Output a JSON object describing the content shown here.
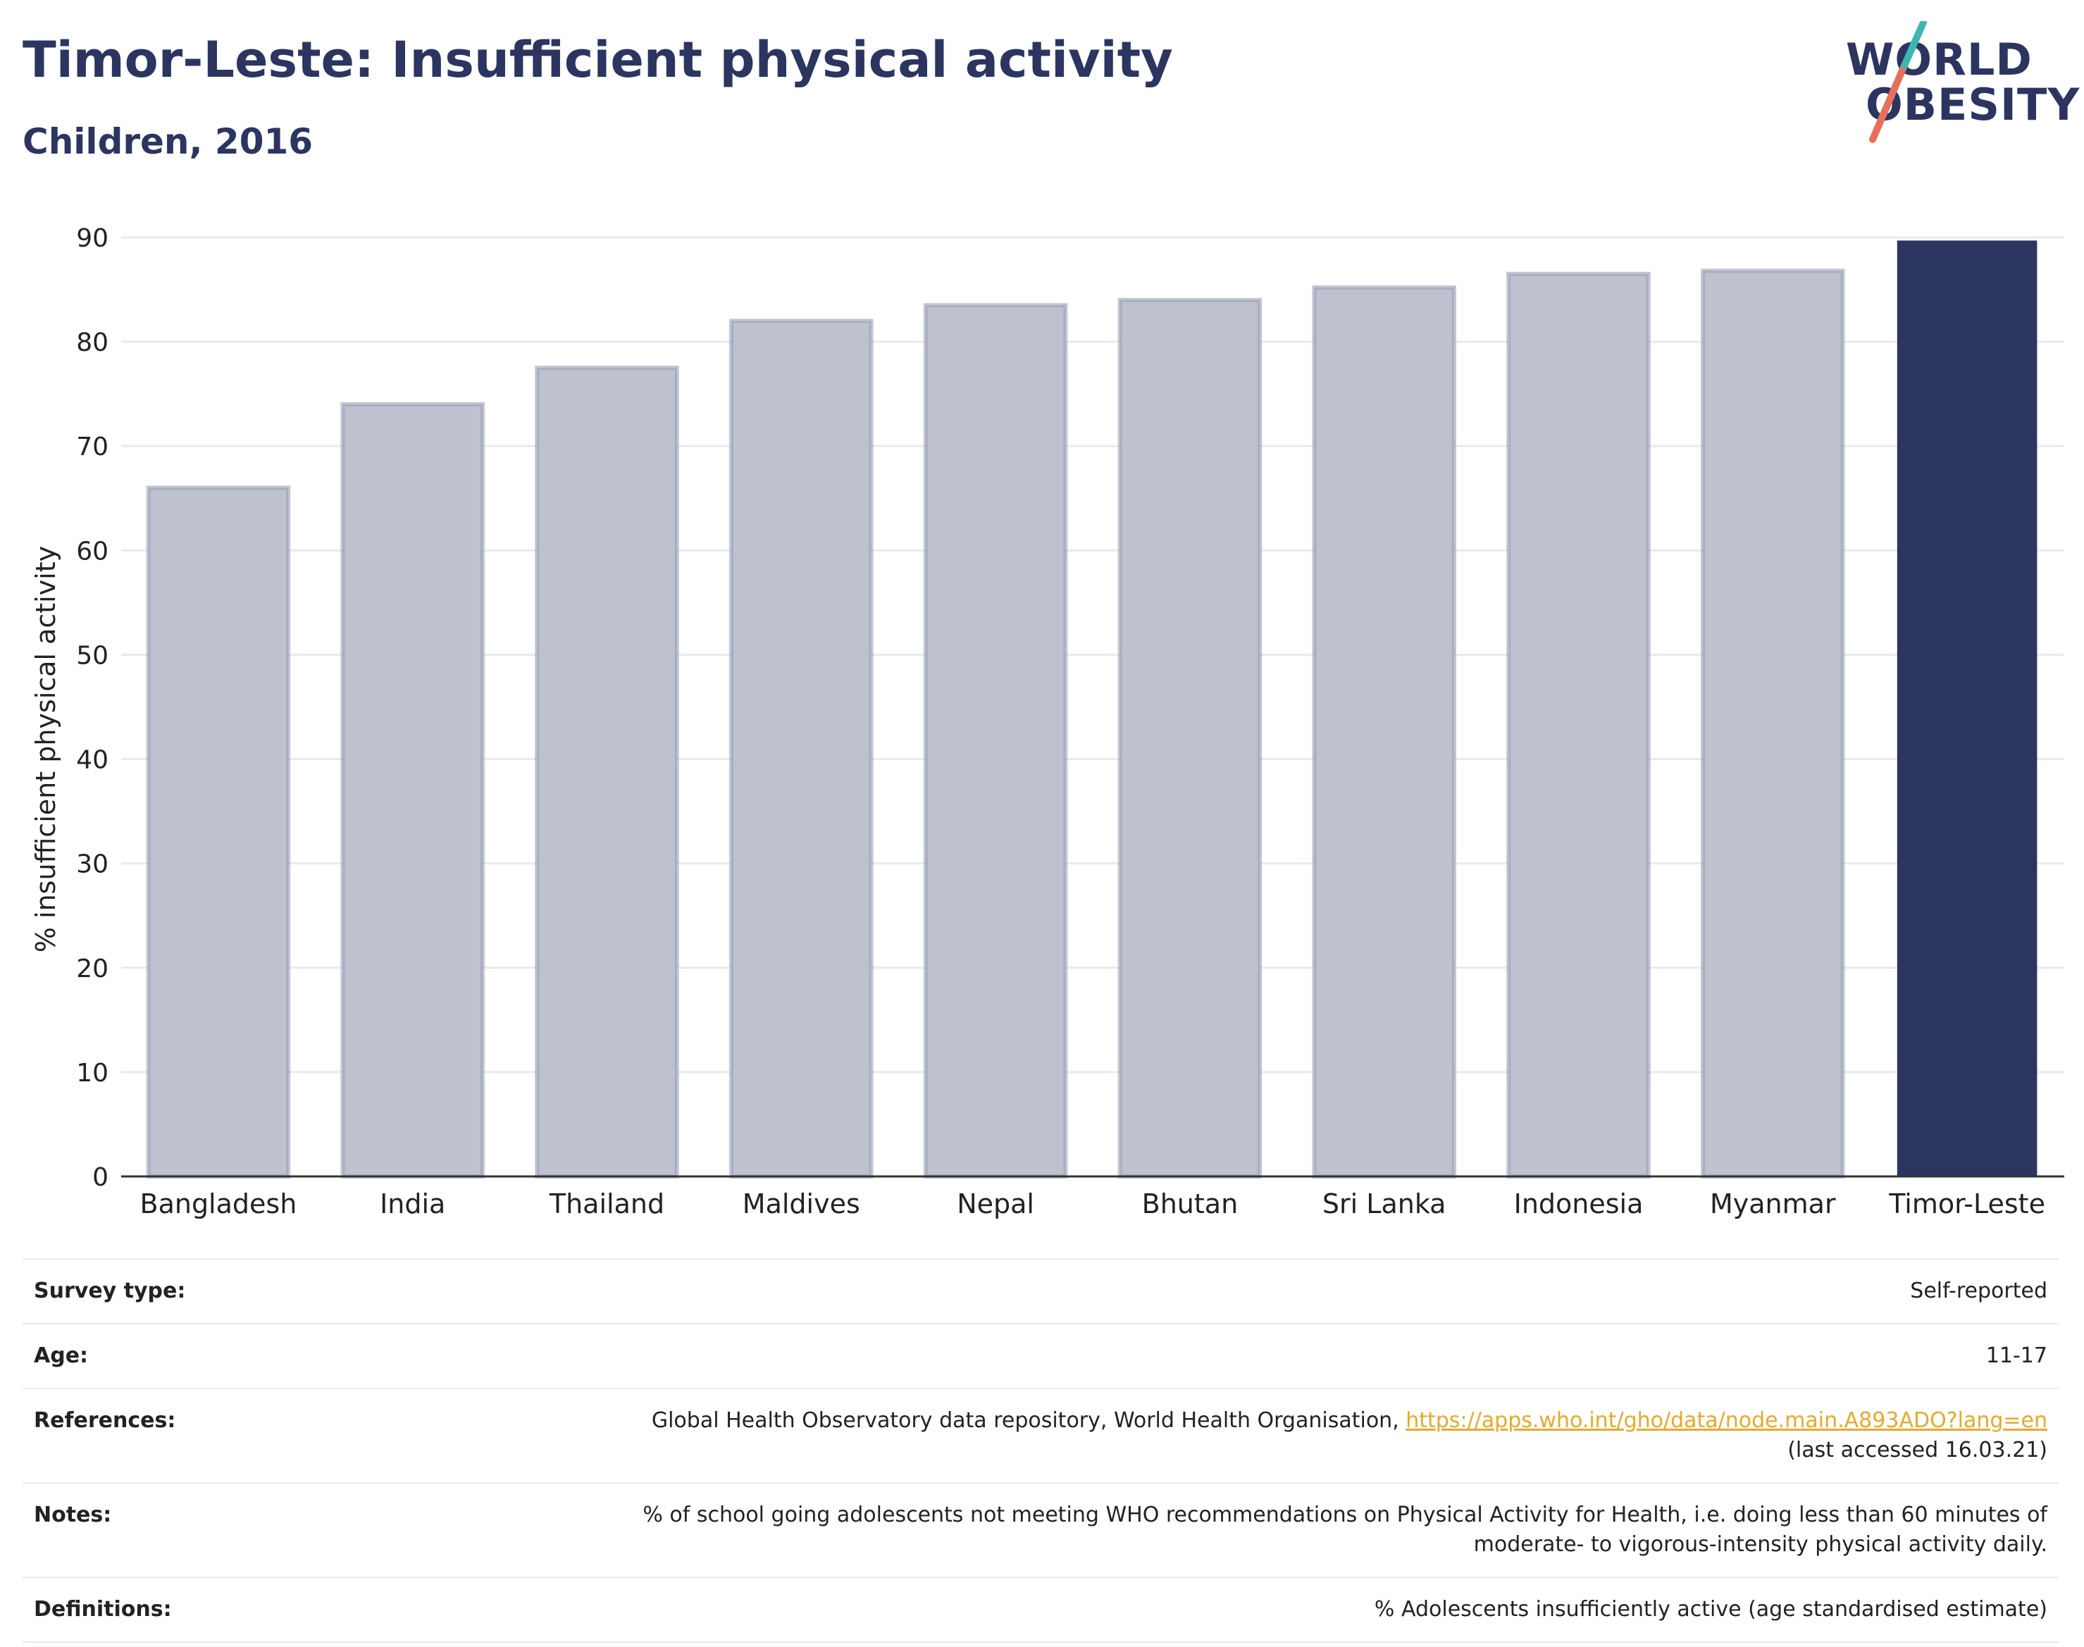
{
  "header": {
    "title": "Timor-Leste: Insufficient physical activity",
    "subtitle": "Children, 2016"
  },
  "logo": {
    "line1": "WORLD",
    "line2": "OBESITY",
    "colors": {
      "text": "#2b3560",
      "slash_top": "#3bb8b0",
      "slash_bottom": "#e8705a"
    }
  },
  "chart_data": {
    "type": "bar",
    "title": "Timor-Leste: Insufficient physical activity",
    "subtitle": "Children, 2016",
    "ylabel": "% insufficient physical activity",
    "xlabel": "",
    "ylim": [
      0,
      90
    ],
    "yticks": [
      0,
      10,
      20,
      30,
      40,
      50,
      60,
      70,
      80,
      90
    ],
    "grid": true,
    "categories": [
      "Bangladesh",
      "India",
      "Thailand",
      "Maldives",
      "Nepal",
      "Bhutan",
      "Sri Lanka",
      "Indonesia",
      "Myanmar",
      "Timor-Leste"
    ],
    "values": [
      66,
      74,
      77.5,
      82,
      83.5,
      84,
      85.2,
      86.5,
      86.8,
      89.7
    ],
    "highlight": "Timor-Leste",
    "colors": {
      "highlight": "#2b3560",
      "other_fill": "#bec1ce",
      "other_stroke": "#9aa0b7",
      "grid": "#e8eaf0",
      "axis": "#333333"
    }
  },
  "info": {
    "rows": [
      {
        "label": "Survey type:",
        "value": "Self-reported"
      },
      {
        "label": "Age:",
        "value": "11-17"
      },
      {
        "label": "References:",
        "value": "Global Health Observatory data repository, World Health Organisation, ",
        "link": "https://apps.who.int/gho/data/node.main.A893ADO?lang=en",
        "value_line2": "(last accessed 16.03.21)"
      },
      {
        "label": "Notes:",
        "value": "% of school going adolescents not meeting WHO recommendations on Physical Activity for Health, i.e. doing less than 60 minutes of",
        "value_line2": "moderate- to vigorous-intensity physical activity daily."
      },
      {
        "label": "Definitions:",
        "value": "% Adolescents insufficiently active (age standardised estimate)"
      }
    ]
  }
}
